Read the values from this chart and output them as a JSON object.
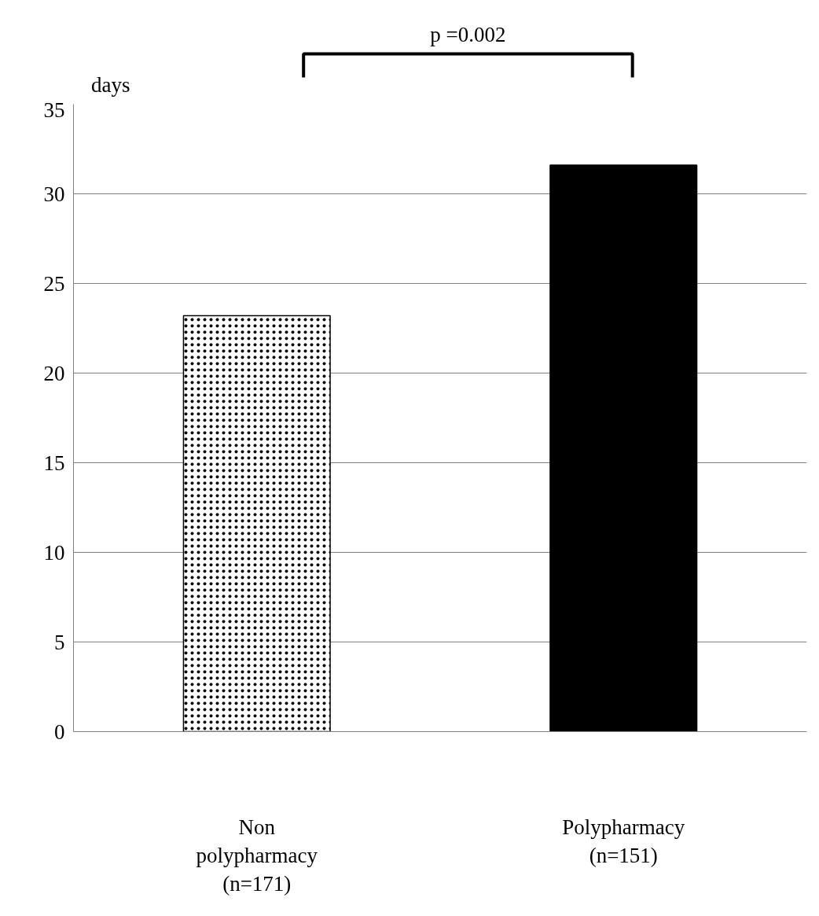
{
  "chart_data": {
    "type": "bar",
    "ylabel": "days",
    "categories": [
      "Non\npolypharmacy\n(n=171)",
      "Polypharmacy\n(n=151)"
    ],
    "values": [
      23.2,
      31.6
    ],
    "colors": [
      "#ffffff",
      "#000000"
    ],
    "ylim": [
      0,
      35
    ],
    "yticks": [
      0,
      5,
      10,
      15,
      20,
      25,
      30,
      35
    ],
    "grid": "y",
    "annotations": [
      "p =0.002"
    ]
  }
}
